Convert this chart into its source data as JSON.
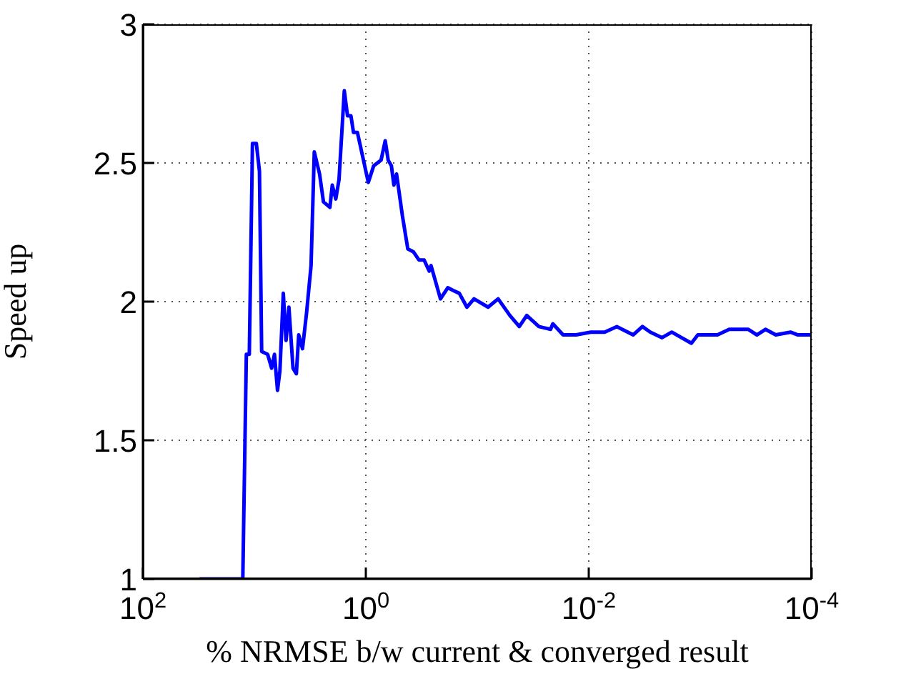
{
  "chart_data": {
    "type": "line",
    "xlabel": "% NRMSE b/w current & converged result",
    "ylabel": "Speed up",
    "log": "x",
    "grid": true,
    "marker": "none",
    "line_style": "solid",
    "xlim": [
      100,
      0.0001
    ],
    "ylim": [
      1,
      3
    ],
    "xticks": [
      {
        "value": 100,
        "label": "10$^{2}$"
      },
      {
        "value": 1,
        "label": "10$^{0}$"
      },
      {
        "value": 0.01,
        "label": "10$^{-2}$"
      },
      {
        "value": 0.0001,
        "label": "10$^{-4}$"
      }
    ],
    "yticks": [
      1,
      1.5,
      2,
      2.5,
      3
    ],
    "series": [
      {
        "color": "#0000ff",
        "x": [
          31,
          12.7,
          11.8,
          11.1,
          10.4,
          9.6,
          9.0,
          8.6,
          7.6,
          7.0,
          6.6,
          6.2,
          5.9,
          5.5,
          5.2,
          4.9,
          4.5,
          4.2,
          4.0,
          3.7,
          3.4,
          3.1,
          2.9,
          2.6,
          2.4,
          2.1,
          2.0,
          1.86,
          1.74,
          1.56,
          1.46,
          1.36,
          1.29,
          1.19,
          0.95,
          0.85,
          0.73,
          0.67,
          0.63,
          0.59,
          0.56,
          0.53,
          0.47,
          0.42,
          0.375,
          0.333,
          0.3,
          0.27,
          0.26,
          0.214,
          0.184,
          0.164,
          0.145,
          0.124,
          0.107,
          0.08,
          0.065,
          0.051,
          0.042,
          0.036,
          0.028,
          0.022,
          0.021,
          0.017,
          0.013,
          0.0096,
          0.0072,
          0.0056,
          0.004,
          0.0033,
          0.0028,
          0.0022,
          0.0018,
          0.0012,
          0.00105,
          0.0007,
          0.00055,
          0.00037,
          0.00031,
          0.00026,
          0.00021,
          0.000155,
          0.000133,
          0.0001
        ],
        "values": [
          1,
          1,
          1.81,
          1.81,
          2.57,
          2.57,
          2.47,
          1.82,
          1.81,
          1.76,
          1.81,
          1.68,
          1.75,
          2.03,
          1.86,
          1.98,
          1.76,
          1.74,
          1.88,
          1.83,
          1.96,
          2.13,
          2.54,
          2.46,
          2.36,
          2.34,
          2.42,
          2.37,
          2.44,
          2.76,
          2.67,
          2.67,
          2.61,
          2.61,
          2.43,
          2.49,
          2.51,
          2.58,
          2.51,
          2.49,
          2.42,
          2.46,
          2.31,
          2.19,
          2.18,
          2.15,
          2.15,
          2.11,
          2.13,
          2.01,
          2.05,
          2.04,
          2.03,
          1.98,
          2.01,
          1.98,
          2.01,
          1.95,
          1.91,
          1.95,
          1.91,
          1.9,
          1.92,
          1.88,
          1.88,
          1.89,
          1.89,
          1.91,
          1.88,
          1.91,
          1.89,
          1.87,
          1.89,
          1.85,
          1.88,
          1.88,
          1.9,
          1.9,
          1.88,
          1.9,
          1.88,
          1.89,
          1.88,
          1.88
        ]
      }
    ]
  }
}
